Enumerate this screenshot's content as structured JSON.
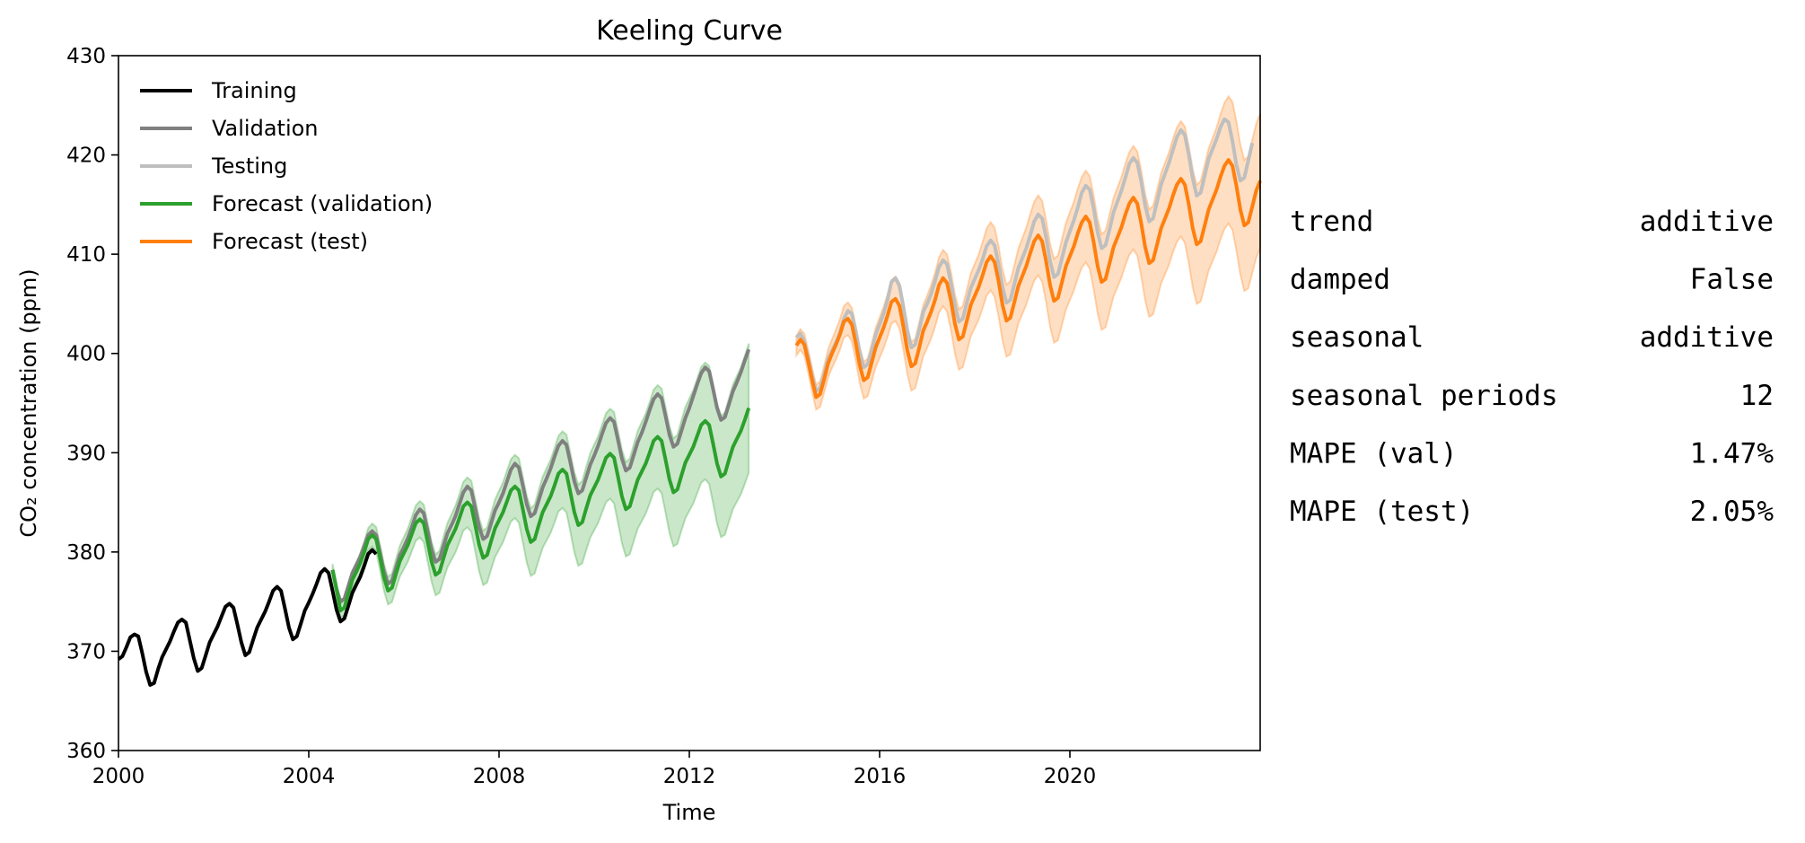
{
  "chart_data": {
    "type": "line",
    "title": "Keeling Curve",
    "xlabel": "Time",
    "ylabel": "CO₂ concentration (ppm)",
    "xlim": [
      2000,
      2024.0
    ],
    "ylim": [
      360,
      430
    ],
    "x_ticks": [
      "2000",
      "2004",
      "2008",
      "2012",
      "2016",
      "2020"
    ],
    "y_ticks": [
      "360",
      "370",
      "380",
      "390",
      "400",
      "410",
      "420",
      "430"
    ],
    "legend_position": "upper-left",
    "grid": false,
    "series": [
      {
        "name": "Training",
        "color": "#000000",
        "x_start": 2000.0,
        "x_step": 0.0833333,
        "values": [
          369.2,
          369.5,
          370.4,
          371.4,
          371.7,
          371.5,
          369.8,
          367.9,
          366.6,
          366.8,
          368.2,
          369.4,
          370.2,
          371.0,
          372.0,
          372.9,
          373.2,
          372.9,
          371.1,
          369.3,
          368.0,
          368.3,
          369.6,
          370.9,
          371.7,
          372.5,
          373.5,
          374.5,
          374.8,
          374.4,
          372.7,
          370.9,
          369.6,
          369.9,
          371.2,
          372.4,
          373.2,
          374.0,
          375.0,
          376.1,
          376.5,
          376.1,
          374.3,
          372.4,
          371.2,
          371.5,
          372.8,
          374.1,
          374.9,
          375.8,
          376.8,
          377.9,
          378.3,
          377.9,
          376.1,
          374.2,
          373.0,
          373.3,
          374.6,
          375.9,
          376.7,
          377.5,
          378.6,
          379.8,
          380.2,
          379.8
        ]
      },
      {
        "name": "Validation",
        "color": "#808080",
        "x_start": 2004.5,
        "x_step": 0.0833333,
        "values": [
          378.2,
          376.3,
          375.0,
          375.3,
          376.6,
          377.9,
          378.7,
          379.5,
          380.6,
          381.7,
          382.1,
          381.7,
          379.9,
          378.0,
          376.8,
          377.1,
          378.4,
          379.7,
          380.5,
          381.4,
          382.5,
          383.7,
          384.3,
          383.9,
          382.1,
          380.2,
          379.0,
          379.3,
          380.6,
          381.9,
          382.7,
          383.6,
          384.8,
          386.0,
          386.6,
          386.2,
          384.4,
          382.5,
          381.3,
          381.6,
          382.9,
          384.2,
          385.0,
          385.9,
          387.1,
          388.3,
          388.9,
          388.5,
          386.7,
          384.8,
          383.6,
          383.9,
          385.2,
          386.5,
          387.4,
          388.4,
          389.6,
          390.7,
          391.2,
          390.8,
          389.0,
          387.1,
          385.9,
          386.2,
          387.5,
          388.8,
          389.7,
          390.7,
          391.9,
          393.0,
          393.5,
          393.1,
          391.3,
          389.4,
          388.2,
          388.5,
          389.8,
          391.1,
          392.0,
          393.1,
          394.3,
          395.4,
          395.9,
          395.5,
          393.7,
          391.8,
          390.6,
          390.9,
          392.2,
          393.5,
          394.5,
          395.7,
          396.9,
          398.0,
          398.6,
          398.2,
          396.4,
          394.5,
          393.3,
          393.6,
          394.9,
          396.2,
          397.1,
          398.1,
          399.3,
          400.4
        ]
      },
      {
        "name": "Testing",
        "color": "#bfbfbf",
        "x_start": 2014.25,
        "x_step": 0.0833333,
        "values": [
          401.6,
          402.0,
          401.2,
          399.6,
          397.7,
          396.2,
          396.5,
          397.9,
          399.4,
          400.3,
          401.1,
          402.1,
          403.5,
          404.3,
          404.0,
          402.2,
          400.1,
          398.6,
          398.9,
          400.3,
          401.9,
          402.9,
          404.0,
          405.4,
          407.2,
          407.6,
          406.8,
          404.7,
          402.3,
          400.6,
          400.9,
          402.4,
          404.2,
          405.0,
          406.0,
          407.3,
          408.7,
          409.4,
          409.0,
          407.1,
          404.8,
          403.2,
          403.5,
          405.1,
          406.6,
          407.5,
          408.4,
          409.5,
          410.8,
          411.4,
          410.9,
          409.0,
          406.7,
          405.1,
          405.4,
          407.0,
          408.6,
          409.6,
          410.6,
          411.9,
          413.3,
          414.0,
          413.6,
          411.7,
          409.3,
          407.7,
          408.0,
          409.6,
          411.2,
          412.3,
          413.4,
          414.7,
          416.2,
          416.9,
          416.5,
          414.6,
          412.2,
          410.6,
          410.9,
          412.5,
          414.2,
          415.3,
          416.4,
          417.7,
          419.1,
          419.7,
          419.2,
          417.3,
          414.9,
          413.3,
          413.6,
          415.3,
          417.0,
          418.1,
          419.2,
          420.5,
          421.8,
          422.5,
          422.0,
          420.0,
          417.6,
          415.9,
          416.2,
          417.9,
          419.6,
          420.6,
          421.6,
          422.8,
          423.6,
          423.3,
          421.4,
          419.0,
          417.4,
          417.7,
          419.4,
          421.2
        ]
      },
      {
        "name": "Forecast (validation)",
        "color": "#2ca02c",
        "x_start": 2004.5,
        "x_step": 0.0833333,
        "values": [
          378.2,
          376.2,
          374.1,
          374.4,
          375.8,
          377.2,
          378.0,
          378.9,
          380.0,
          381.3,
          381.7,
          381.3,
          379.4,
          377.4,
          376.1,
          376.4,
          377.8,
          379.1,
          379.9,
          380.7,
          381.8,
          382.9,
          383.3,
          382.9,
          381.0,
          379.0,
          377.7,
          378.0,
          379.4,
          380.7,
          381.5,
          382.3,
          383.4,
          384.6,
          385.0,
          384.6,
          382.7,
          380.7,
          379.4,
          379.7,
          381.1,
          382.4,
          383.2,
          384.0,
          385.1,
          386.2,
          386.6,
          386.2,
          384.3,
          382.3,
          381.0,
          381.3,
          382.7,
          384.0,
          384.8,
          385.6,
          386.7,
          387.9,
          388.3,
          387.9,
          386.0,
          384.0,
          382.7,
          383.0,
          384.4,
          385.7,
          386.5,
          387.3,
          388.4,
          389.5,
          389.9,
          389.5,
          387.6,
          385.6,
          384.3,
          384.6,
          386.0,
          387.3,
          388.1,
          388.9,
          390.0,
          391.2,
          391.6,
          391.2,
          389.3,
          387.3,
          386.0,
          386.3,
          387.7,
          389.0,
          389.8,
          390.6,
          391.7,
          392.8,
          393.2,
          392.8,
          390.9,
          388.9,
          387.6,
          387.9,
          389.3,
          390.6,
          391.4,
          392.2,
          393.3,
          394.5
        ]
      },
      {
        "name": "Forecast (test)",
        "color": "#ff7f0e",
        "x_start": 2014.25,
        "x_step": 0.0833333,
        "values": [
          400.8,
          401.4,
          400.9,
          399.2,
          397.3,
          395.6,
          395.9,
          397.4,
          399.0,
          400.0,
          400.9,
          401.9,
          403.2,
          403.5,
          402.9,
          401.0,
          398.8,
          397.3,
          397.6,
          399.1,
          400.6,
          401.6,
          402.6,
          403.8,
          405.2,
          405.5,
          404.8,
          402.7,
          400.3,
          398.7,
          399.0,
          400.6,
          402.3,
          403.2,
          404.2,
          405.4,
          406.9,
          407.6,
          407.1,
          405.3,
          403.0,
          401.4,
          401.7,
          403.3,
          404.9,
          405.8,
          406.7,
          407.9,
          409.2,
          409.8,
          409.2,
          407.3,
          404.9,
          403.3,
          403.6,
          405.2,
          406.8,
          407.8,
          408.8,
          410.1,
          411.3,
          411.9,
          411.3,
          409.3,
          406.9,
          405.3,
          405.6,
          407.2,
          408.8,
          409.8,
          410.8,
          412.1,
          413.2,
          413.8,
          413.2,
          411.2,
          408.8,
          407.2,
          407.5,
          409.1,
          410.7,
          411.7,
          412.7,
          414.0,
          415.1,
          415.7,
          415.1,
          413.1,
          410.7,
          409.1,
          409.4,
          411.0,
          412.6,
          413.6,
          414.6,
          415.9,
          417.0,
          417.6,
          417.0,
          415.0,
          412.6,
          411.0,
          411.3,
          412.9,
          414.5,
          415.5,
          416.5,
          417.8,
          418.9,
          419.5,
          418.9,
          416.9,
          414.5,
          412.9,
          413.2,
          414.8,
          416.4,
          417.4
        ]
      }
    ],
    "confidence_bands": [
      {
        "series": "Forecast (validation)",
        "color": "#2ca02c",
        "opacity": 0.25,
        "half_width_start": 0.6,
        "half_width_end": 6.5
      },
      {
        "series": "Forecast (test)",
        "color": "#ff7f0e",
        "opacity": 0.25,
        "half_width_start": 1.0,
        "half_width_end": 6.8
      }
    ]
  },
  "info_table": [
    {
      "key": "trend",
      "value": "additive"
    },
    {
      "key": "damped",
      "value": "False"
    },
    {
      "key": "seasonal",
      "value": "additive"
    },
    {
      "key": "seasonal periods",
      "value": "12"
    },
    {
      "key": "MAPE (val)",
      "value": "1.47%"
    },
    {
      "key": "MAPE (test)",
      "value": "2.05%"
    }
  ]
}
